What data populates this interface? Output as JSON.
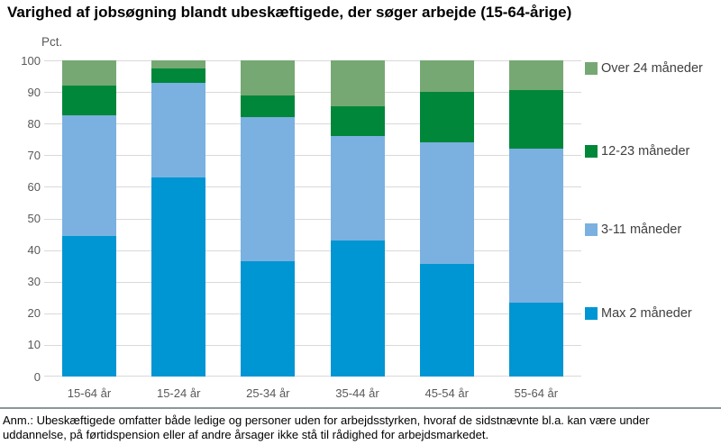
{
  "title": "Varighed af jobsøgning blandt ubeskæftigede, der søger arbejde (15-64-årige)",
  "chart_data": {
    "type": "bar",
    "stacked": true,
    "title": "Varighed af jobsøgning blandt ubeskæftigede, der søger arbejde (15-64-årige)",
    "xlabel": "",
    "ylabel": "Pct.",
    "ylim": [
      0,
      100
    ],
    "yticks": [
      0,
      10,
      20,
      30,
      40,
      50,
      60,
      70,
      80,
      90,
      100
    ],
    "grid": true,
    "legend_position": "right",
    "categories": [
      "15-64 år",
      "15-24 år",
      "25-34 år",
      "35-44 år",
      "45-54 år",
      "55-64 år"
    ],
    "series": [
      {
        "name": "Max 2 måneder",
        "color": "#0095d3",
        "values": [
          44.5,
          63.0,
          36.5,
          43.0,
          35.5,
          23.5
        ]
      },
      {
        "name": "3-11 måneder",
        "color": "#7ab1e1",
        "values": [
          38.0,
          30.0,
          45.5,
          33.0,
          38.5,
          48.5
        ]
      },
      {
        "name": "12-23 måneder",
        "color": "#008739",
        "values": [
          9.5,
          4.5,
          7.0,
          9.5,
          16.0,
          18.5
        ]
      },
      {
        "name": "Over 24 måneder",
        "color": "#76a873",
        "values": [
          8.0,
          2.5,
          11.0,
          14.5,
          10.0,
          9.5
        ]
      }
    ]
  },
  "y_axis_label": "Pct.",
  "legend": {
    "items": [
      {
        "label": "Over 24 måneder",
        "color": "#76a873"
      },
      {
        "label": "12-23 måneder",
        "color": "#008739"
      },
      {
        "label": "3-11 måneder",
        "color": "#7ab1e1"
      },
      {
        "label": "Max 2 måneder",
        "color": "#0095d3"
      }
    ]
  },
  "footnote": "Anm.: Ubeskæftigede omfatter både ledige og personer uden for arbejdsstyrken, hvoraf de sidstnævnte bl.a. kan være under uddannelse, på førtidspension eller af andre årsager ikke stå til rådighed for arbejdsmarkedet.",
  "colors": {
    "gridline": "#d9d9d9",
    "axis_text": "#595959",
    "divider": "#8a979d",
    "title_text": "#000000"
  }
}
